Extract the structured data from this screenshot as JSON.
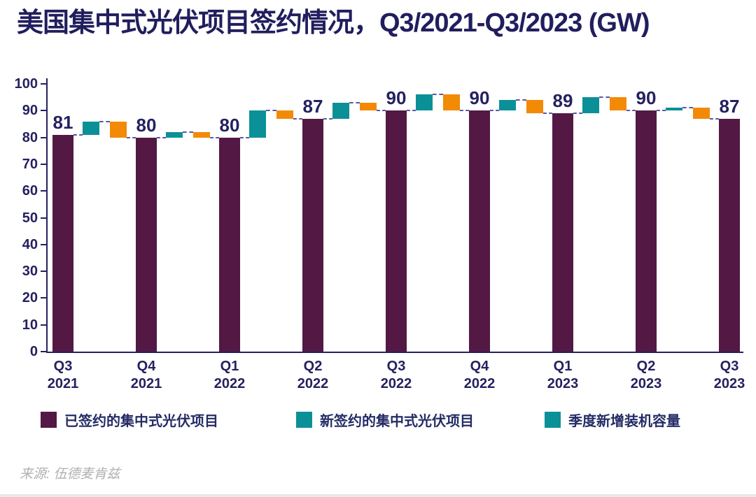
{
  "title": "美国集中式光伏项目签约情况，Q3/2021-Q3/2023 (GW)",
  "source": "来源: 伍德麦肯兹",
  "colors": {
    "contracted_purple": "#531844",
    "new_contract_teal": "#0b9098",
    "installed_orange": "#f28a05",
    "navy_text": "#242160",
    "dashed_connector": "#5a57a6",
    "source_gray": "#b1b0b0"
  },
  "legend": [
    {
      "label": "已签约的集中式光伏项目",
      "color": "#531844"
    },
    {
      "label": "新签约的集中式光伏项目",
      "color": "#0b9098"
    },
    {
      "label": "季度新增装机容量",
      "color": "#0b9098"
    }
  ],
  "chart_data": {
    "type": "bar",
    "subtype": "waterfall",
    "title": "美国集中式光伏项目签约情况，Q3/2021-Q3/2023 (GW)",
    "categories": [
      "Q3 2021",
      "Q4 2021",
      "Q1 2022",
      "Q2 2022",
      "Q3 2022",
      "Q4 2022",
      "Q1 2023",
      "Q2 2023",
      "Q3 2023"
    ],
    "series": [
      {
        "name": "已签约的集中式光伏项目",
        "role": "level",
        "values": [
          81,
          80,
          80,
          87,
          90,
          90,
          89,
          90,
          87
        ]
      },
      {
        "name": "新签约的集中式光伏项目",
        "role": "increase-between-quarters",
        "values": [
          5,
          2,
          10,
          6,
          6,
          4,
          6,
          1
        ]
      },
      {
        "name": "季度新增装机容量",
        "role": "decrease-between-quarters",
        "values": [
          6,
          2,
          3,
          3,
          6,
          5,
          5,
          4
        ]
      }
    ],
    "bar_labels": [
      "81",
      "80",
      "80",
      "87",
      "90",
      "90",
      "89",
      "90",
      "87"
    ],
    "xlabel": "",
    "ylabel": "",
    "ylim": [
      0,
      100
    ],
    "yticks": [
      0,
      10,
      20,
      30,
      40,
      50,
      60,
      70,
      80,
      90,
      100
    ],
    "grid": false,
    "legend_position": "bottom"
  }
}
